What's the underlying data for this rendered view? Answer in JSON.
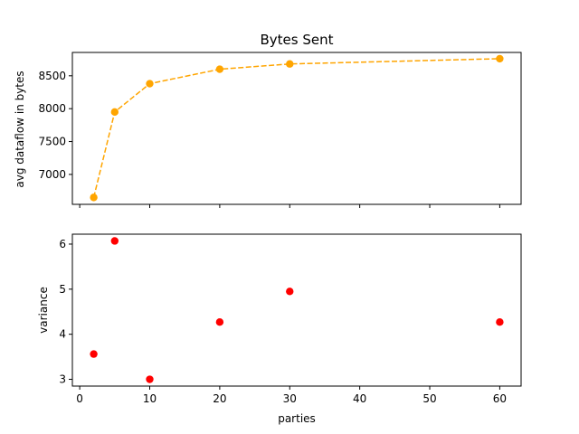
{
  "chart_data": [
    {
      "type": "line",
      "title": "Bytes Sent",
      "xlabel": "",
      "ylabel": "avg dataflow in bytes",
      "x": [
        2,
        5,
        10,
        20,
        30,
        60
      ],
      "series": [
        {
          "values": [
            6650,
            7950,
            8380,
            8600,
            8680,
            8760
          ],
          "color": "#ffa500",
          "linestyle": "dashed",
          "marker": "circle"
        }
      ],
      "xlim": [
        -1.05,
        63.05
      ],
      "ylim": [
        6545,
        8855
      ],
      "yticks": [
        7000,
        7500,
        8000,
        8500
      ],
      "ytick_labels": [
        "7000",
        "7500",
        "8000",
        "8500"
      ],
      "xticks": [
        0,
        10,
        20,
        30,
        40,
        50,
        60
      ],
      "show_xtick_labels": false,
      "grid": false
    },
    {
      "type": "scatter",
      "title": "",
      "xlabel": "parties",
      "ylabel": "variance",
      "x": [
        2,
        5,
        10,
        20,
        30,
        60
      ],
      "series": [
        {
          "values": [
            3.56,
            6.07,
            3.0,
            4.27,
            4.95,
            4.27
          ],
          "color": "#ff0000",
          "marker": "circle"
        }
      ],
      "xlim": [
        -1.05,
        63.05
      ],
      "ylim": [
        2.85,
        6.22
      ],
      "yticks": [
        3,
        4,
        5,
        6
      ],
      "ytick_labels": [
        "3",
        "4",
        "5",
        "6"
      ],
      "xticks": [
        0,
        10,
        20,
        30,
        40,
        50,
        60
      ],
      "xtick_labels": [
        "0",
        "10",
        "20",
        "30",
        "40",
        "50",
        "60"
      ],
      "show_xtick_labels": true,
      "grid": false
    }
  ]
}
